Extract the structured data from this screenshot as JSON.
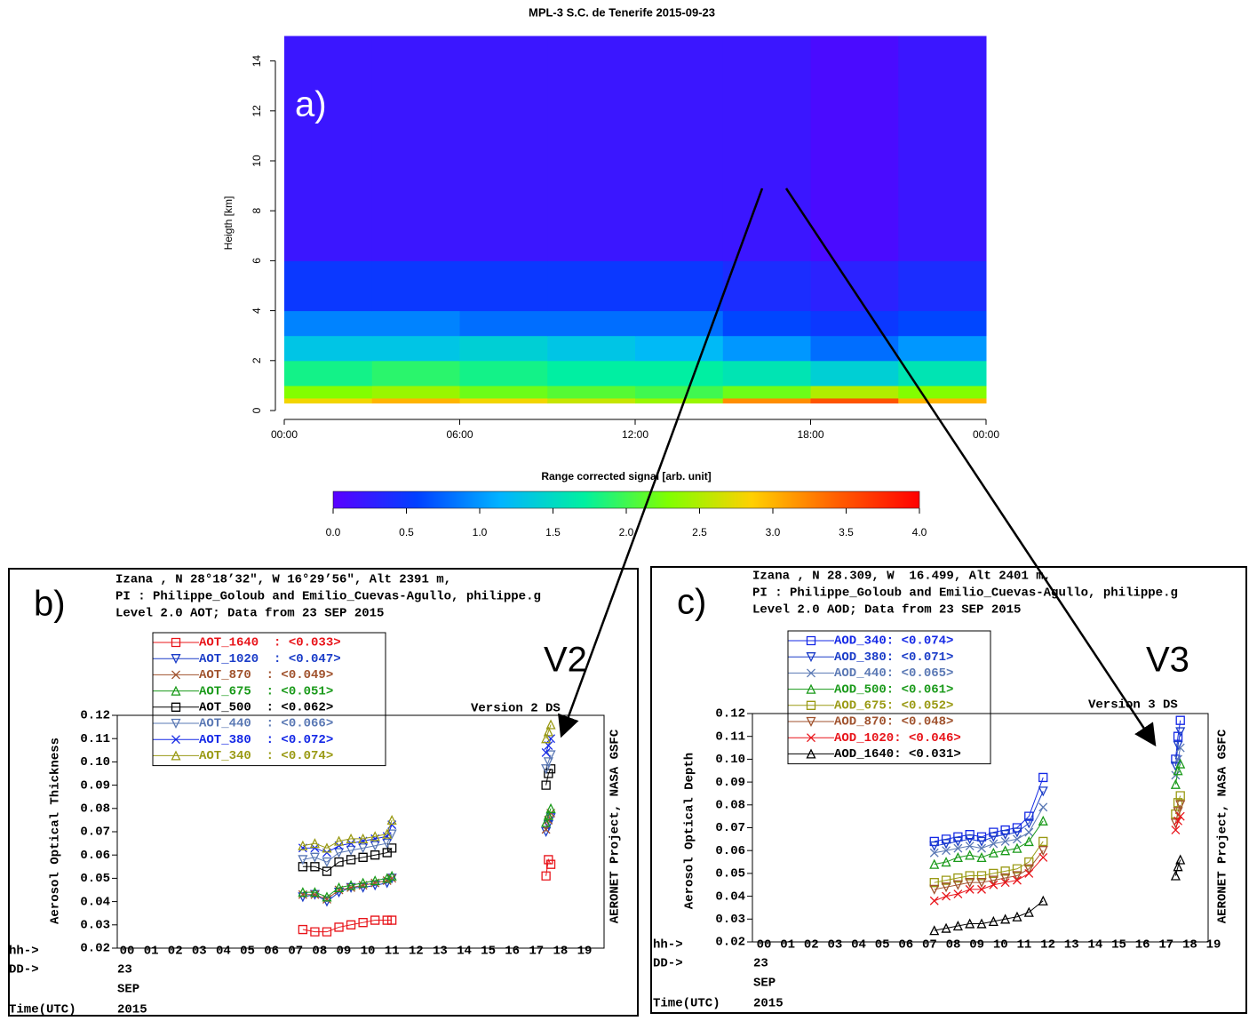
{
  "chart_data": [
    {
      "type": "heatmap",
      "title": "MPL-3 S.C. de Tenerife 2015-09-23",
      "panel_label": "a)",
      "ylabel": "Heigth [km]",
      "xlim": [
        0,
        24
      ],
      "xticks": [
        {
          "value": 0,
          "label": "00:00"
        },
        {
          "value": 6,
          "label": "06:00"
        },
        {
          "value": 12,
          "label": "12:00"
        },
        {
          "value": 18,
          "label": "18:00"
        },
        {
          "value": 24,
          "label": "00:00"
        }
      ],
      "ylim": [
        0,
        15
      ],
      "yticks": [
        0,
        2,
        4,
        6,
        8,
        10,
        12,
        14
      ],
      "x_bins": [
        0,
        3,
        6,
        9,
        12,
        15,
        18,
        21,
        24
      ],
      "y_bins": [
        0.3,
        0.5,
        1,
        2,
        3,
        4,
        6,
        15
      ],
      "values": [
        [
          2.8,
          3.0,
          2.8,
          2.6,
          2.4,
          3.2,
          3.5,
          3.0
        ],
        [
          2.3,
          2.4,
          2.2,
          2.1,
          2.0,
          2.2,
          2.5,
          2.3
        ],
        [
          1.8,
          1.9,
          1.8,
          1.7,
          1.7,
          1.6,
          1.4,
          1.6
        ],
        [
          1.3,
          1.3,
          1.4,
          1.3,
          1.2,
          1.0,
          0.8,
          1.0
        ],
        [
          0.9,
          0.9,
          0.8,
          0.8,
          0.8,
          0.6,
          0.5,
          0.6
        ],
        [
          0.5,
          0.5,
          0.5,
          0.5,
          0.5,
          0.4,
          0.3,
          0.4
        ],
        [
          0.2,
          0.2,
          0.2,
          0.2,
          0.2,
          0.2,
          0.1,
          0.2
        ]
      ],
      "colorbar_label": "Range corrected signal [arb. unit]",
      "clim": [
        0,
        4
      ],
      "cticks": [
        {
          "value": 0,
          "label": "0.0"
        },
        0.5,
        {
          "value": 1,
          "label": "1.0"
        },
        1.5,
        {
          "value": 2,
          "label": "2.0"
        },
        2.5,
        {
          "value": 3,
          "label": "3.0"
        },
        3.5,
        {
          "value": 4,
          "label": "4.0"
        }
      ],
      "colormap": [
        "#5a00ff",
        "#0040ff",
        "#00b4ff",
        "#00f0a0",
        "#80ff00",
        "#ffd000",
        "#ff6000",
        "#ff0000"
      ]
    },
    {
      "type": "line",
      "panel_label": "b)",
      "version_label": "V2",
      "header": [
        "Izana , N 28°18’32\", W 16°29’56\", Alt 2391 m,",
        "PI : Philippe_Goloub and Emilio_Cuevas-Agullo, philippe.g",
        "Level 2.0 AOT; Data from 23 SEP 2015"
      ],
      "ylabel": "Aerosol Optical Thickness",
      "right_label": "AERONET Project, NASA GSFC",
      "source_note": "Version 2 DS",
      "x_row_labels": [
        "hh->",
        "DD->",
        "Time(UTC)"
      ],
      "date_labels": [
        "23",
        "SEP",
        "2015"
      ],
      "xlim": [
        0,
        20
      ],
      "xticks": [
        {
          "value": 0,
          "label": "00"
        },
        {
          "value": 1,
          "label": "01"
        },
        {
          "value": 2,
          "label": "02"
        },
        {
          "value": 3,
          "label": "03"
        },
        {
          "value": 4,
          "label": "04"
        },
        {
          "value": 5,
          "label": "05"
        },
        {
          "value": 6,
          "label": "06"
        },
        {
          "value": 7,
          "label": "07"
        },
        {
          "value": 8,
          "label": "08"
        },
        {
          "value": 9,
          "label": "09"
        },
        10,
        11,
        12,
        13,
        14,
        15,
        16,
        17,
        18,
        19
      ],
      "ylim": [
        0.02,
        0.12
      ],
      "yticks": [
        0.02,
        0.03,
        0.04,
        0.05,
        0.06,
        0.07,
        0.08,
        0.09,
        {
          "value": 0.1,
          "label": "0.10"
        },
        0.11,
        0.12
      ],
      "x": [
        7.3,
        7.8,
        8.3,
        8.8,
        9.3,
        9.8,
        10.3,
        10.8,
        11.0,
        14,
        17.4,
        17.5,
        17.6
      ],
      "series": [
        {
          "name": "AOT_1640  : <0.033>",
          "color": "#e8141a",
          "marker": "square",
          "values": [
            0.028,
            0.027,
            0.027,
            0.029,
            0.03,
            0.031,
            0.032,
            0.032,
            0.032,
            null,
            0.051,
            0.058,
            0.056
          ]
        },
        {
          "name": "AOT_1020  : <0.047>",
          "color": "#1a3cc8",
          "marker": "tri-down",
          "values": [
            0.042,
            0.043,
            0.04,
            0.044,
            0.046,
            0.046,
            0.047,
            0.048,
            0.05,
            null,
            0.07,
            0.073,
            0.076
          ]
        },
        {
          "name": "AOT_870  : <0.049>",
          "color": "#a0522d",
          "marker": "cross",
          "values": [
            0.043,
            0.043,
            0.041,
            0.045,
            0.046,
            0.047,
            0.048,
            0.049,
            0.05,
            null,
            0.071,
            0.075,
            0.078
          ]
        },
        {
          "name": "AOT_675  : <0.051>",
          "color": "#1a9a1a",
          "marker": "tri-up",
          "values": [
            0.044,
            0.044,
            0.042,
            0.046,
            0.047,
            0.048,
            0.049,
            0.05,
            0.051,
            null,
            0.074,
            0.077,
            0.08
          ]
        },
        {
          "name": "AOT_500  : <0.062>",
          "color": "#000000",
          "marker": "square",
          "values": [
            0.055,
            0.055,
            0.053,
            0.057,
            0.058,
            0.059,
            0.06,
            0.061,
            0.063,
            null,
            0.09,
            0.095,
            0.097
          ]
        },
        {
          "name": "AOT_440  : <0.066>",
          "color": "#5a78b4",
          "marker": "tri-down",
          "values": [
            0.058,
            0.059,
            0.057,
            0.061,
            0.062,
            0.063,
            0.064,
            0.065,
            0.069,
            null,
            0.097,
            0.1,
            0.103
          ]
        },
        {
          "name": "AOT_380  : <0.072>",
          "color": "#1428e6",
          "marker": "cross",
          "values": [
            0.063,
            0.063,
            0.061,
            0.064,
            0.065,
            0.066,
            0.067,
            0.068,
            0.073,
            null,
            0.104,
            0.107,
            0.11
          ]
        },
        {
          "name": "AOT_340  : <0.074>",
          "color": "#9a9a14",
          "marker": "tri-up",
          "values": [
            0.064,
            0.065,
            0.063,
            0.066,
            0.067,
            0.067,
            0.068,
            0.069,
            0.075,
            null,
            0.11,
            0.113,
            0.116
          ]
        }
      ]
    },
    {
      "type": "line",
      "panel_label": "c)",
      "version_label": "V3",
      "header": [
        "Izana , N 28.309, W  16.499, Alt 2401 m,",
        "PI : Philippe_Goloub and Emilio_Cuevas-Agullo, philippe.g",
        "Level 2.0 AOD; Data from 23 SEP 2015"
      ],
      "ylabel": "Aerosol Optical Depth",
      "right_label": "AERONET Project, NASA GSFC",
      "source_note": "Version 3 DS",
      "x_row_labels": [
        "hh->",
        "DD->",
        "Time(UTC)"
      ],
      "date_labels": [
        "23",
        "SEP",
        "2015"
      ],
      "xlim": [
        0,
        20
      ],
      "xticks": [
        {
          "value": 0,
          "label": "00"
        },
        {
          "value": 1,
          "label": "01"
        },
        {
          "value": 2,
          "label": "02"
        },
        {
          "value": 3,
          "label": "03"
        },
        {
          "value": 4,
          "label": "04"
        },
        {
          "value": 5,
          "label": "05"
        },
        {
          "value": 6,
          "label": "06"
        },
        {
          "value": 7,
          "label": "07"
        },
        {
          "value": 8,
          "label": "08"
        },
        {
          "value": 9,
          "label": "09"
        },
        10,
        11,
        12,
        13,
        14,
        15,
        16,
        17,
        18,
        19
      ],
      "ylim": [
        0.02,
        0.12
      ],
      "yticks": [
        0.02,
        0.03,
        0.04,
        0.05,
        0.06,
        0.07,
        0.08,
        0.09,
        {
          "value": 0.1,
          "label": "0.10"
        },
        0.11,
        0.12
      ],
      "x": [
        7.2,
        7.7,
        8.2,
        8.7,
        9.2,
        9.7,
        10.2,
        10.7,
        11.2,
        11.8,
        14,
        17.4,
        17.5,
        17.6
      ],
      "series": [
        {
          "name": "AOD_340: <0.074>",
          "color": "#1428e6",
          "marker": "square",
          "values": [
            0.064,
            0.065,
            0.066,
            0.067,
            0.066,
            0.068,
            0.069,
            0.07,
            0.075,
            0.092,
            null,
            0.1,
            0.11,
            0.117
          ]
        },
        {
          "name": "AOD_380: <0.071>",
          "color": "#1a3cc8",
          "marker": "tri-down",
          "values": [
            0.062,
            0.063,
            0.064,
            0.065,
            0.064,
            0.066,
            0.067,
            0.068,
            0.072,
            0.086,
            null,
            0.097,
            0.106,
            0.112
          ]
        },
        {
          "name": "AOD_440: <0.065>",
          "color": "#5a78b4",
          "marker": "cross",
          "values": [
            0.059,
            0.06,
            0.061,
            0.062,
            0.061,
            0.063,
            0.064,
            0.065,
            0.068,
            0.079,
            null,
            0.093,
            0.1,
            0.105
          ]
        },
        {
          "name": "AOD_500: <0.061>",
          "color": "#1a9a1a",
          "marker": "tri-up",
          "values": [
            0.054,
            0.055,
            0.057,
            0.058,
            0.057,
            0.059,
            0.06,
            0.061,
            0.064,
            0.073,
            null,
            0.089,
            0.095,
            0.098
          ]
        },
        {
          "name": "AOD_675: <0.052>",
          "color": "#9a9a14",
          "marker": "square",
          "values": [
            0.046,
            0.047,
            0.048,
            0.049,
            0.049,
            0.05,
            0.051,
            0.052,
            0.055,
            0.064,
            null,
            0.076,
            0.081,
            0.084
          ]
        },
        {
          "name": "AOD_870: <0.048>",
          "color": "#a0522d",
          "marker": "tri-down",
          "values": [
            0.043,
            0.044,
            0.045,
            0.046,
            0.046,
            0.047,
            0.048,
            0.049,
            0.052,
            0.06,
            null,
            0.072,
            0.077,
            0.08
          ]
        },
        {
          "name": "AOD_1020: <0.046>",
          "color": "#e8141a",
          "marker": "cross",
          "values": [
            0.038,
            0.04,
            0.041,
            0.043,
            0.043,
            0.045,
            0.046,
            0.047,
            0.05,
            0.057,
            null,
            0.069,
            0.073,
            0.075
          ]
        },
        {
          "name": "AOD_1640: <0.031>",
          "color": "#000000",
          "marker": "tri-up",
          "values": [
            0.025,
            0.026,
            0.027,
            0.028,
            0.028,
            0.029,
            0.03,
            0.031,
            0.033,
            0.038,
            null,
            0.049,
            0.053,
            0.056
          ]
        }
      ]
    }
  ]
}
